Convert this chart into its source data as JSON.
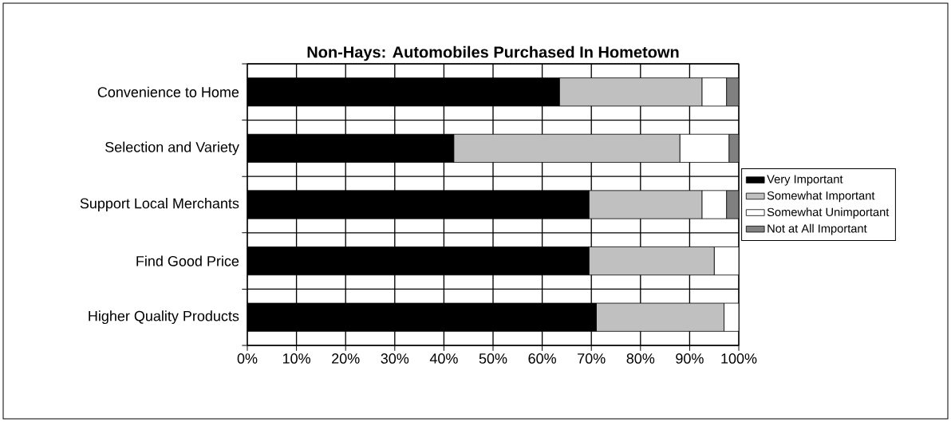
{
  "chart_data": {
    "type": "bar",
    "orientation": "horizontal",
    "stacked": true,
    "title": "Non-Hays: Automobiles Purchased In Hometown",
    "categories": [
      "Convenience to Home",
      "Selection and Variety",
      "Support Local Merchants",
      "Find Good Price",
      "Higher Quality Products"
    ],
    "series": [
      {
        "name": "Very Important",
        "color": "#000000",
        "values": [
          63.5,
          42,
          69.5,
          69.5,
          71
        ]
      },
      {
        "name": "Somewhat Important",
        "color": "#c0c0c0",
        "values": [
          29,
          46,
          23,
          25.5,
          26
        ]
      },
      {
        "name": "Somewhat Unimportant",
        "color": "#ffffff",
        "values": [
          5,
          10,
          5,
          5,
          3
        ]
      },
      {
        "name": "Not at All Important",
        "color": "#808080",
        "values": [
          2.5,
          2,
          2.5,
          0,
          0
        ]
      }
    ],
    "xlim": [
      0,
      100
    ],
    "xticks": [
      {
        "value": 0,
        "label": "0%"
      },
      {
        "value": 10,
        "label": "10%"
      },
      {
        "value": 20,
        "label": "20%"
      },
      {
        "value": 30,
        "label": "30%"
      },
      {
        "value": 40,
        "label": "40%"
      },
      {
        "value": 50,
        "label": "50%"
      },
      {
        "value": 60,
        "label": "60%"
      },
      {
        "value": 70,
        "label": "70%"
      },
      {
        "value": 80,
        "label": "80%"
      },
      {
        "value": 90,
        "label": "90%"
      },
      {
        "value": 100,
        "label": "100%"
      }
    ],
    "grid": true,
    "legend": "right"
  }
}
